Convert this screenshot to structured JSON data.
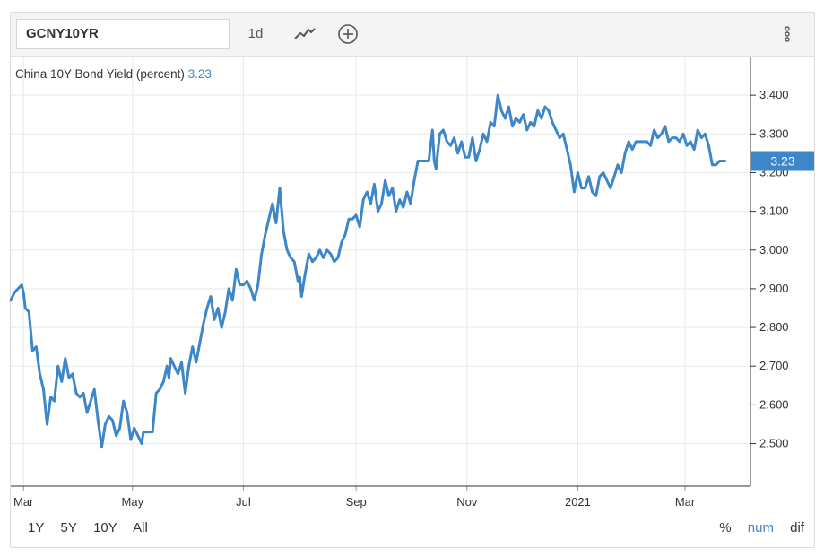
{
  "toolbar": {
    "symbol": "GCNY10YR",
    "interval": "1d",
    "chart_type_icon": "line-chart-icon",
    "compare_icon": "plus-circle-icon",
    "more_icon": "vertical-dots-icon"
  },
  "legend": {
    "label": "China 10Y Bond Yield (percent)",
    "value": "3.23"
  },
  "range_buttons": [
    "1Y",
    "5Y",
    "10Y",
    "All"
  ],
  "mode_buttons": [
    "%",
    "num",
    "dif"
  ],
  "colors": {
    "line": "#3d87c9",
    "price_tag_bg": "#3d87c9",
    "grid": "#e9e9e9"
  },
  "chart_data": {
    "type": "line",
    "title": "China 10Y Bond Yield (percent)",
    "xlabel": "",
    "ylabel": "",
    "x_ticks": [
      {
        "label": "Mar",
        "day": 7
      },
      {
        "label": "May",
        "day": 67
      },
      {
        "label": "Jul",
        "day": 128
      },
      {
        "label": "Sep",
        "day": 190
      },
      {
        "label": "Nov",
        "day": 251
      },
      {
        "label": "2021",
        "day": 312
      },
      {
        "label": "Mar",
        "day": 371
      }
    ],
    "xlim": [
      0,
      407
    ],
    "y_ticks": [
      "2.500",
      "2.600",
      "2.700",
      "2.800",
      "2.900",
      "3.000",
      "3.100",
      "3.200",
      "3.300",
      "3.400"
    ],
    "ylim": [
      2.39,
      3.5
    ],
    "last_value": "3.23",
    "grid": true,
    "series": [
      {
        "points": [
          [
            0,
            2.87
          ],
          [
            2,
            2.89
          ],
          [
            4,
            2.9
          ],
          [
            6,
            2.91
          ],
          [
            7,
            2.89
          ],
          [
            8,
            2.85
          ],
          [
            10,
            2.84
          ],
          [
            12,
            2.74
          ],
          [
            14,
            2.75
          ],
          [
            16,
            2.68
          ],
          [
            18,
            2.64
          ],
          [
            20,
            2.55
          ],
          [
            22,
            2.62
          ],
          [
            24,
            2.61
          ],
          [
            26,
            2.7
          ],
          [
            28,
            2.66
          ],
          [
            30,
            2.72
          ],
          [
            32,
            2.67
          ],
          [
            34,
            2.68
          ],
          [
            36,
            2.63
          ],
          [
            38,
            2.62
          ],
          [
            40,
            2.63
          ],
          [
            42,
            2.58
          ],
          [
            44,
            2.61
          ],
          [
            46,
            2.64
          ],
          [
            48,
            2.56
          ],
          [
            50,
            2.49
          ],
          [
            52,
            2.55
          ],
          [
            54,
            2.57
          ],
          [
            56,
            2.56
          ],
          [
            58,
            2.52
          ],
          [
            60,
            2.54
          ],
          [
            62,
            2.61
          ],
          [
            64,
            2.58
          ],
          [
            66,
            2.51
          ],
          [
            68,
            2.54
          ],
          [
            70,
            2.52
          ],
          [
            72,
            2.5
          ],
          [
            73,
            2.53
          ],
          [
            76,
            2.53
          ],
          [
            78,
            2.53
          ],
          [
            80,
            2.63
          ],
          [
            82,
            2.64
          ],
          [
            84,
            2.66
          ],
          [
            86,
            2.7
          ],
          [
            87,
            2.67
          ],
          [
            88,
            2.72
          ],
          [
            90,
            2.7
          ],
          [
            92,
            2.68
          ],
          [
            94,
            2.71
          ],
          [
            96,
            2.63
          ],
          [
            98,
            2.7
          ],
          [
            100,
            2.75
          ],
          [
            102,
            2.71
          ],
          [
            104,
            2.76
          ],
          [
            106,
            2.81
          ],
          [
            108,
            2.85
          ],
          [
            110,
            2.88
          ],
          [
            112,
            2.82
          ],
          [
            114,
            2.85
          ],
          [
            116,
            2.8
          ],
          [
            118,
            2.84
          ],
          [
            120,
            2.9
          ],
          [
            122,
            2.87
          ],
          [
            124,
            2.95
          ],
          [
            126,
            2.91
          ],
          [
            128,
            2.91
          ],
          [
            130,
            2.92
          ],
          [
            132,
            2.9
          ],
          [
            134,
            2.87
          ],
          [
            136,
            2.91
          ],
          [
            138,
            2.99
          ],
          [
            140,
            3.04
          ],
          [
            142,
            3.08
          ],
          [
            144,
            3.12
          ],
          [
            146,
            3.07
          ],
          [
            148,
            3.16
          ],
          [
            150,
            3.05
          ],
          [
            152,
            3.0
          ],
          [
            154,
            2.98
          ],
          [
            156,
            2.97
          ],
          [
            158,
            2.92
          ],
          [
            159,
            2.93
          ],
          [
            160,
            2.88
          ],
          [
            162,
            2.94
          ],
          [
            164,
            2.99
          ],
          [
            166,
            2.97
          ],
          [
            168,
            2.98
          ],
          [
            170,
            3.0
          ],
          [
            172,
            2.98
          ],
          [
            174,
            3.0
          ],
          [
            176,
            2.99
          ],
          [
            178,
            2.97
          ],
          [
            180,
            2.98
          ],
          [
            182,
            3.02
          ],
          [
            184,
            3.04
          ],
          [
            186,
            3.08
          ],
          [
            188,
            3.08
          ],
          [
            190,
            3.09
          ],
          [
            192,
            3.06
          ],
          [
            194,
            3.13
          ],
          [
            196,
            3.15
          ],
          [
            198,
            3.12
          ],
          [
            200,
            3.17
          ],
          [
            202,
            3.1
          ],
          [
            204,
            3.12
          ],
          [
            206,
            3.18
          ],
          [
            208,
            3.14
          ],
          [
            210,
            3.16
          ],
          [
            212,
            3.1
          ],
          [
            214,
            3.13
          ],
          [
            216,
            3.11
          ],
          [
            218,
            3.15
          ],
          [
            220,
            3.12
          ],
          [
            222,
            3.18
          ],
          [
            224,
            3.23
          ],
          [
            226,
            3.23
          ],
          [
            228,
            3.23
          ],
          [
            230,
            3.23
          ],
          [
            232,
            3.31
          ],
          [
            233,
            3.23
          ],
          [
            234,
            3.21
          ],
          [
            236,
            3.3
          ],
          [
            238,
            3.31
          ],
          [
            240,
            3.28
          ],
          [
            242,
            3.27
          ],
          [
            244,
            3.29
          ],
          [
            246,
            3.25
          ],
          [
            248,
            3.28
          ],
          [
            250,
            3.24
          ],
          [
            252,
            3.24
          ],
          [
            254,
            3.29
          ],
          [
            256,
            3.23
          ],
          [
            258,
            3.26
          ],
          [
            260,
            3.3
          ],
          [
            262,
            3.28
          ],
          [
            264,
            3.33
          ],
          [
            266,
            3.32
          ],
          [
            268,
            3.4
          ],
          [
            270,
            3.36
          ],
          [
            272,
            3.34
          ],
          [
            274,
            3.37
          ],
          [
            276,
            3.32
          ],
          [
            278,
            3.34
          ],
          [
            280,
            3.33
          ],
          [
            282,
            3.35
          ],
          [
            284,
            3.31
          ],
          [
            286,
            3.33
          ],
          [
            288,
            3.32
          ],
          [
            290,
            3.36
          ],
          [
            292,
            3.34
          ],
          [
            294,
            3.37
          ],
          [
            296,
            3.36
          ],
          [
            298,
            3.33
          ],
          [
            300,
            3.31
          ],
          [
            302,
            3.29
          ],
          [
            304,
            3.3
          ],
          [
            306,
            3.26
          ],
          [
            308,
            3.22
          ],
          [
            310,
            3.15
          ],
          [
            312,
            3.2
          ],
          [
            314,
            3.16
          ],
          [
            316,
            3.16
          ],
          [
            318,
            3.19
          ],
          [
            320,
            3.15
          ],
          [
            322,
            3.14
          ],
          [
            324,
            3.19
          ],
          [
            326,
            3.2
          ],
          [
            328,
            3.18
          ],
          [
            330,
            3.16
          ],
          [
            332,
            3.19
          ],
          [
            334,
            3.22
          ],
          [
            336,
            3.2
          ],
          [
            338,
            3.25
          ],
          [
            340,
            3.28
          ],
          [
            342,
            3.26
          ],
          [
            344,
            3.28
          ],
          [
            346,
            3.28
          ],
          [
            348,
            3.28
          ],
          [
            350,
            3.28
          ],
          [
            352,
            3.27
          ],
          [
            354,
            3.31
          ],
          [
            356,
            3.29
          ],
          [
            358,
            3.3
          ],
          [
            360,
            3.32
          ],
          [
            362,
            3.28
          ],
          [
            364,
            3.29
          ],
          [
            366,
            3.29
          ],
          [
            368,
            3.28
          ],
          [
            370,
            3.3
          ],
          [
            372,
            3.27
          ],
          [
            374,
            3.28
          ],
          [
            376,
            3.26
          ],
          [
            378,
            3.31
          ],
          [
            380,
            3.29
          ],
          [
            382,
            3.3
          ],
          [
            384,
            3.27
          ],
          [
            386,
            3.22
          ],
          [
            388,
            3.22
          ],
          [
            390,
            3.23
          ],
          [
            392,
            3.23
          ],
          [
            393,
            3.23
          ]
        ]
      }
    ]
  }
}
